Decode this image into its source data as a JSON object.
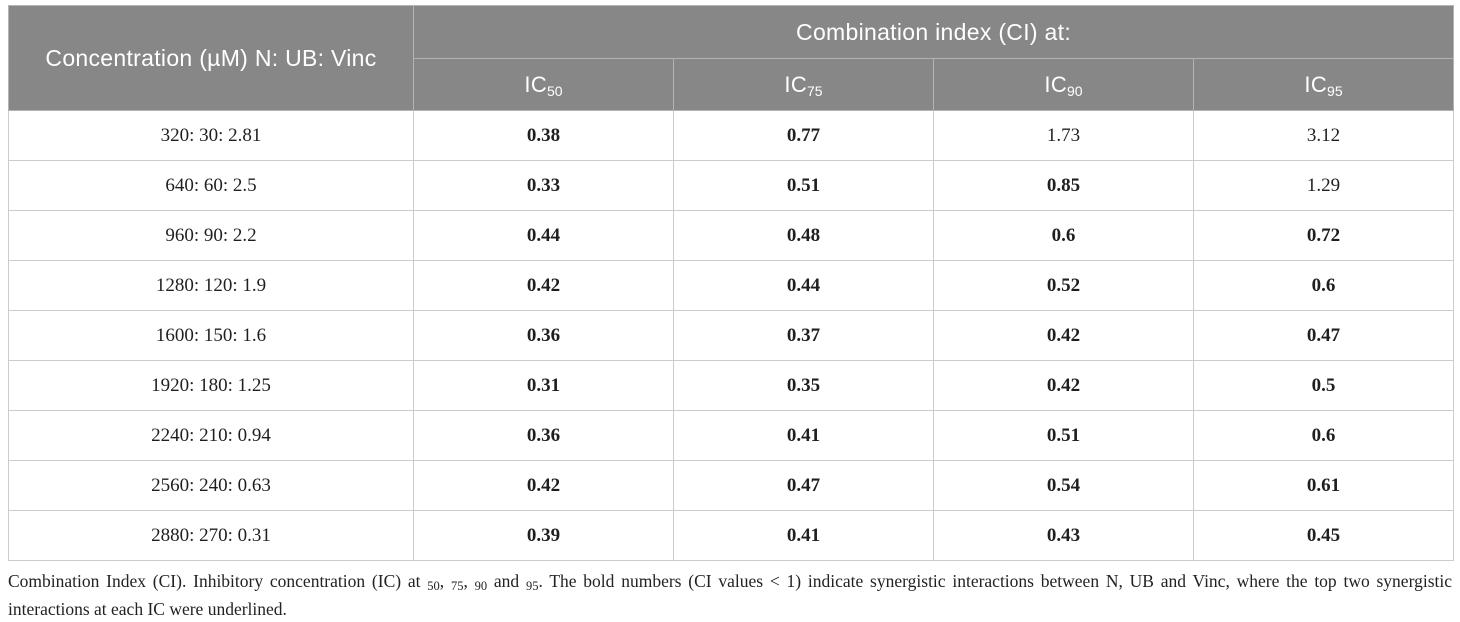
{
  "colors": {
    "header_bg": "#878787",
    "header_text": "#ffffff",
    "grid_line": "#cccccc",
    "body_text": "#1f1f1f"
  },
  "table": {
    "header": {
      "concentration": "Concentration (µM) N: UB: Vinc",
      "combination_index": "Combination index (CI) at:",
      "ic_levels": [
        {
          "base": "IC",
          "sub": "50"
        },
        {
          "base": "IC",
          "sub": "75"
        },
        {
          "base": "IC",
          "sub": "90"
        },
        {
          "base": "IC",
          "sub": "95"
        }
      ]
    },
    "rows": [
      {
        "concentration": "320: 30: 2.81",
        "values": [
          {
            "text": "0.38",
            "bold": true
          },
          {
            "text": "0.77",
            "bold": true
          },
          {
            "text": "1.73",
            "bold": false
          },
          {
            "text": "3.12",
            "bold": false
          }
        ]
      },
      {
        "concentration": "640: 60: 2.5",
        "values": [
          {
            "text": "0.33",
            "bold": true
          },
          {
            "text": "0.51",
            "bold": true
          },
          {
            "text": "0.85",
            "bold": true
          },
          {
            "text": "1.29",
            "bold": false
          }
        ]
      },
      {
        "concentration": "960: 90: 2.2",
        "values": [
          {
            "text": "0.44",
            "bold": true
          },
          {
            "text": "0.48",
            "bold": true
          },
          {
            "text": "0.6",
            "bold": true
          },
          {
            "text": "0.72",
            "bold": true
          }
        ]
      },
      {
        "concentration": "1280: 120: 1.9",
        "values": [
          {
            "text": "0.42",
            "bold": true
          },
          {
            "text": "0.44",
            "bold": true
          },
          {
            "text": "0.52",
            "bold": true
          },
          {
            "text": "0.6",
            "bold": true
          }
        ]
      },
      {
        "concentration": "1600: 150: 1.6",
        "values": [
          {
            "text": "0.36",
            "bold": true
          },
          {
            "text": "0.37",
            "bold": true
          },
          {
            "text": "0.42",
            "bold": true
          },
          {
            "text": "0.47",
            "bold": true
          }
        ]
      },
      {
        "concentration": "1920: 180: 1.25",
        "values": [
          {
            "text": "0.31",
            "bold": true
          },
          {
            "text": "0.35",
            "bold": true
          },
          {
            "text": "0.42",
            "bold": true
          },
          {
            "text": "0.5",
            "bold": true
          }
        ]
      },
      {
        "concentration": "2240: 210: 0.94",
        "values": [
          {
            "text": "0.36",
            "bold": true
          },
          {
            "text": "0.41",
            "bold": true
          },
          {
            "text": "0.51",
            "bold": true
          },
          {
            "text": "0.6",
            "bold": true
          }
        ]
      },
      {
        "concentration": "2560: 240: 0.63",
        "values": [
          {
            "text": "0.42",
            "bold": true
          },
          {
            "text": "0.47",
            "bold": true
          },
          {
            "text": "0.54",
            "bold": true
          },
          {
            "text": "0.61",
            "bold": true
          }
        ]
      },
      {
        "concentration": "2880: 270: 0.31",
        "values": [
          {
            "text": "0.39",
            "bold": true
          },
          {
            "text": "0.41",
            "bold": true
          },
          {
            "text": "0.43",
            "bold": true
          },
          {
            "text": "0.45",
            "bold": true
          }
        ]
      }
    ]
  },
  "footnote": {
    "parts": [
      "Combination Index (CI). Inhibitory concentration (IC) at ",
      "50",
      ", ",
      "75",
      ", ",
      "90",
      " and ",
      "95",
      ". The bold numbers (CI values < 1) indicate synergistic interactions between N, UB and Vinc, where the top two synergistic interactions at each IC were underlined."
    ]
  }
}
